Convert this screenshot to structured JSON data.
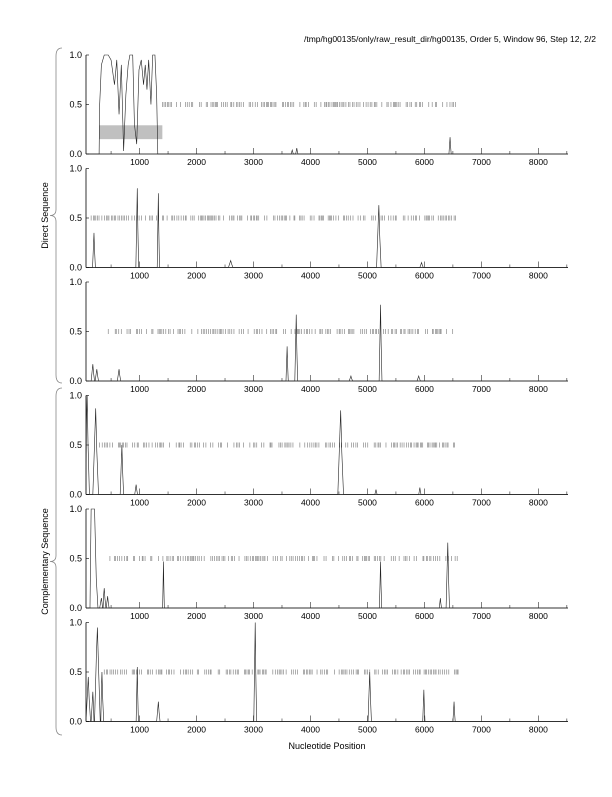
{
  "chart_data": {
    "type": "line",
    "title": "/tmp/hg00135/only/raw_result_dir/hg00135, Order 5, Window 96, Step 12, 2/2",
    "xlabel": "Nucleotide Position",
    "group_labels": [
      "Direct Sequence",
      "Complementary Sequence"
    ],
    "xlim": [
      60,
      8520
    ],
    "ylim": [
      0,
      1
    ],
    "xticks": [
      1000,
      2000,
      3000,
      4000,
      5000,
      6000,
      7000,
      8000
    ],
    "yticks": [
      "0.0",
      "0.5",
      "1.0"
    ],
    "grid": false,
    "panels": [
      {
        "name": "direct-frame-1",
        "curve": [
          [
            60,
            0
          ],
          [
            290,
            0
          ],
          [
            300,
            0.5
          ],
          [
            330,
            0.9
          ],
          [
            380,
            1.0
          ],
          [
            450,
            1.0
          ],
          [
            500,
            0.95
          ],
          [
            560,
            0.7
          ],
          [
            600,
            0.95
          ],
          [
            640,
            0.4
          ],
          [
            680,
            0.9
          ],
          [
            720,
            0.03
          ],
          [
            760,
            0.6
          ],
          [
            800,
            0.9
          ],
          [
            830,
            1.0
          ],
          [
            880,
            1.0
          ],
          [
            910,
            0.3
          ],
          [
            950,
            0.1
          ],
          [
            990,
            0.85
          ],
          [
            1030,
            0.95
          ],
          [
            1070,
            0.7
          ],
          [
            1100,
            0.9
          ],
          [
            1130,
            0.65
          ],
          [
            1160,
            0.95
          ],
          [
            1200,
            0.5
          ],
          [
            1230,
            1.0
          ],
          [
            1270,
            1.0
          ],
          [
            1300,
            0.6
          ],
          [
            1320,
            0
          ]
        ],
        "peaks": [
          [
            3680,
            0.04,
            20
          ],
          [
            3760,
            0.06,
            20
          ],
          [
            6450,
            0.17,
            20
          ]
        ],
        "ticks_range": [
          1400,
          6550
        ],
        "highlight": {
          "x": [
            290,
            1400
          ],
          "y": [
            0.15,
            0.29
          ]
        }
      },
      {
        "name": "direct-frame-2",
        "peaks": [
          [
            200,
            0.35,
            25
          ],
          [
            960,
            0.8,
            25
          ],
          [
            1330,
            0.75,
            20
          ],
          [
            2600,
            0.07,
            40
          ],
          [
            5200,
            0.63,
            40
          ],
          [
            5950,
            0.05,
            30
          ]
        ],
        "ticks_range": [
          150,
          6550
        ]
      },
      {
        "name": "direct-frame-3",
        "peaks": [
          [
            180,
            0.17,
            30
          ],
          [
            250,
            0.12,
            30
          ],
          [
            640,
            0.12,
            30
          ],
          [
            3590,
            0.35,
            20
          ],
          [
            3750,
            0.67,
            25
          ],
          [
            4710,
            0.05,
            30
          ],
          [
            5230,
            0.77,
            25
          ],
          [
            5900,
            0.05,
            30
          ]
        ],
        "ticks_range": [
          450,
          6550
        ]
      },
      {
        "name": "complementary-frame-1",
        "peaks": [
          [
            80,
            1.0,
            40
          ],
          [
            230,
            0.87,
            50
          ],
          [
            690,
            0.5,
            30
          ],
          [
            940,
            0.1,
            25
          ],
          [
            4530,
            0.85,
            50
          ],
          [
            5150,
            0.05,
            20
          ],
          [
            5920,
            0.07,
            20
          ]
        ],
        "ticks_range": [
          300,
          6600
        ]
      },
      {
        "name": "complementary-frame-2",
        "curve": [
          [
            60,
            0
          ],
          [
            130,
            0
          ],
          [
            150,
            1.0
          ],
          [
            210,
            1.0
          ],
          [
            240,
            0.3
          ],
          [
            270,
            0
          ]
        ],
        "peaks": [
          [
            330,
            0.1,
            30
          ],
          [
            380,
            0.2,
            30
          ],
          [
            440,
            0.12,
            25
          ],
          [
            1420,
            0.47,
            15
          ],
          [
            5230,
            0.47,
            20
          ],
          [
            6280,
            0.1,
            20
          ],
          [
            6410,
            0.66,
            30
          ]
        ],
        "ticks_range": [
          480,
          6600
        ]
      },
      {
        "name": "complementary-frame-3",
        "peaks": [
          [
            100,
            0.45,
            40
          ],
          [
            180,
            0.3,
            30
          ],
          [
            260,
            0.95,
            60
          ],
          [
            340,
            0.5,
            30
          ],
          [
            960,
            0.55,
            20
          ],
          [
            1330,
            0.2,
            30
          ],
          [
            3030,
            1.0,
            25
          ],
          [
            5040,
            0.5,
            30
          ],
          [
            5990,
            0.32,
            20
          ],
          [
            6520,
            0.2,
            20
          ]
        ],
        "ticks_range": [
          380,
          6600
        ]
      }
    ]
  }
}
